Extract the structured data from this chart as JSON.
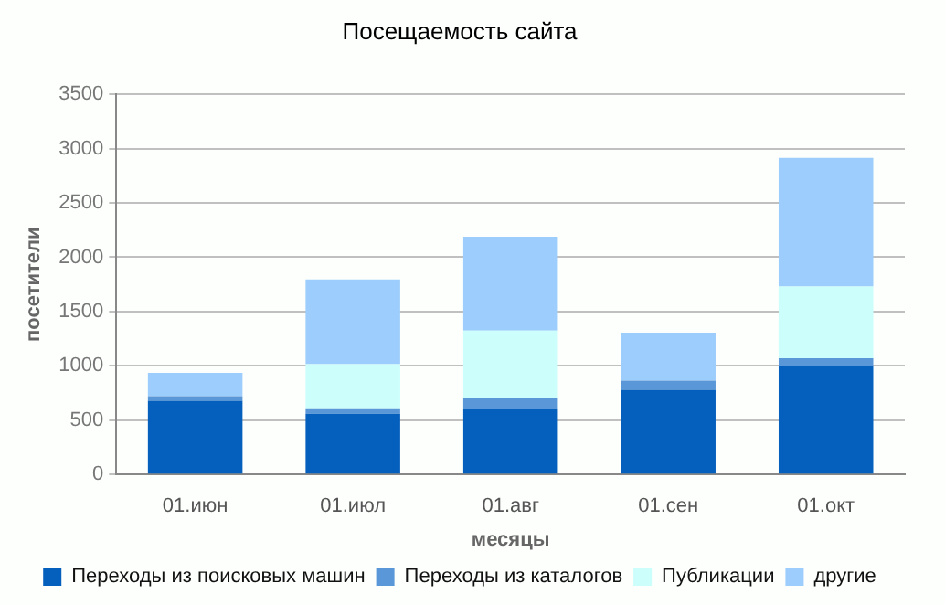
{
  "chart_data": {
    "type": "bar",
    "title": "Посещаемость сайта",
    "xlabel": "месяцы",
    "ylabel": "посетители",
    "categories": [
      "01.июн",
      "01.июл",
      "01.авг",
      "01.сен",
      "01.окт"
    ],
    "stacked": true,
    "series": [
      {
        "name": "Переходы из поисковых машин",
        "color": "#045fbd",
        "values": [
          680,
          560,
          600,
          780,
          1000
        ]
      },
      {
        "name": "Переходы из каталогов",
        "color": "#5a97d8",
        "values": [
          40,
          50,
          100,
          85,
          70
        ]
      },
      {
        "name": "Публикации",
        "color": "#ccfffb",
        "values": [
          0,
          405,
          625,
          0,
          660
        ]
      },
      {
        "name": "другие",
        "color": "#9dcdfc",
        "values": [
          215,
          780,
          865,
          440,
          1185
        ]
      }
    ],
    "ylim": [
      0,
      3500
    ],
    "yticks": [
      0,
      500,
      1000,
      1500,
      2000,
      2500,
      3000,
      3500
    ],
    "grid": "y",
    "legend": "bottom"
  }
}
